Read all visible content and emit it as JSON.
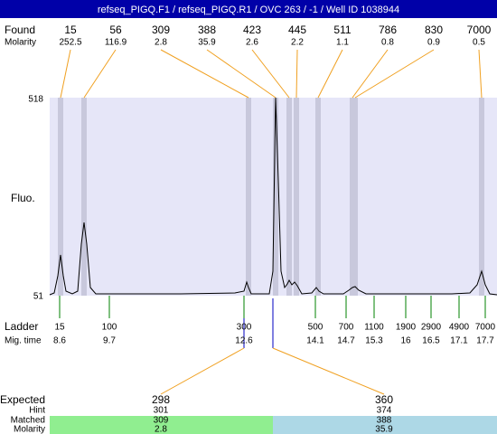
{
  "header": {
    "title": "refseq_PIGQ.F1 / refseq_PIGQ.R1 / OVC 263 / -1 / Well ID 1038944"
  },
  "found": {
    "label": "Found",
    "molarity_label": "Molarity",
    "sizes": [
      "15",
      "56",
      "309",
      "388",
      "423",
      "445",
      "511",
      "786",
      "830",
      "7000"
    ],
    "molarities": [
      "252.5",
      "116.9",
      "2.8",
      "35.9",
      "2.6",
      "2.2",
      "1.1",
      "0.8",
      "0.9",
      "0.5"
    ]
  },
  "y_axis": {
    "label": "Fluo.",
    "top": "518",
    "bottom": "51"
  },
  "ladder": {
    "label": "Ladder",
    "time_label": "Mig. time",
    "sizes": [
      "15",
      "100",
      "300",
      "500",
      "700",
      "1100",
      "1900",
      "2900",
      "4900",
      "7000"
    ],
    "times": [
      "8.6",
      "9.7",
      "12.6",
      "14.1",
      "14.7",
      "15.3",
      "16",
      "16.5",
      "17.1",
      "17.7"
    ]
  },
  "expected": {
    "label": "Expected",
    "hint_label": "Hint",
    "matched_label": "Matched",
    "molarity_label": "Molarity",
    "items": [
      {
        "expected": "298",
        "hint": "301",
        "matched": "309",
        "molarity": "2.8"
      },
      {
        "expected": "360",
        "hint": "374",
        "matched": "388",
        "molarity": "35.9"
      }
    ]
  }
}
